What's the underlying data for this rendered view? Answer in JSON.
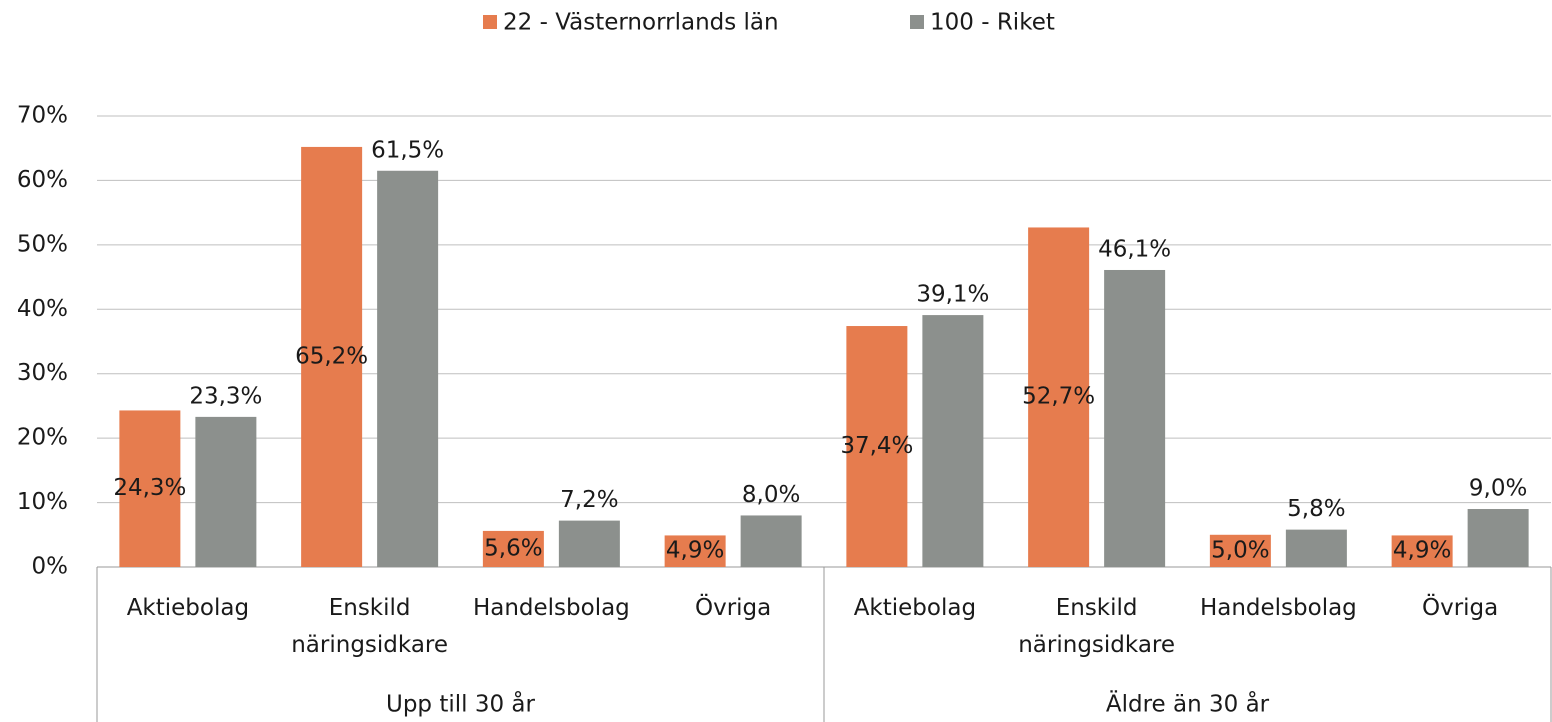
{
  "chart_data": {
    "type": "bar",
    "groups": [
      {
        "name": "Upp till 30 år",
        "categories": [
          "Aktiebolag",
          "Enskild näringsidkare",
          "Handelsbolag",
          "Övriga"
        ]
      },
      {
        "name": "Äldre än 30 år",
        "categories": [
          "Aktiebolag",
          "Enskild näringsidkare",
          "Handelsbolag",
          "Övriga"
        ]
      }
    ],
    "series": [
      {
        "name": "22 - Västernorrlands län",
        "color": "#e67c4e",
        "values": [
          24.3,
          65.2,
          5.6,
          4.9,
          37.4,
          52.7,
          5.0,
          4.9
        ],
        "value_labels": [
          "24,3%",
          "65,2%",
          "5,6%",
          "4,9%",
          "37,4%",
          "52,7%",
          "5,0%",
          "4,9%"
        ]
      },
      {
        "name": "100 - Riket",
        "color": "#8c908d",
        "values": [
          23.3,
          61.5,
          7.2,
          8.0,
          39.1,
          46.1,
          5.8,
          9.0
        ],
        "value_labels": [
          "23,3%",
          "61,5%",
          "7,2%",
          "8,0%",
          "39,1%",
          "46,1%",
          "5,8%",
          "9,0%"
        ]
      }
    ],
    "ylim": [
      0,
      70
    ],
    "yticks": [
      {
        "value": 0,
        "label": "0%"
      },
      {
        "value": 10,
        "label": "10%"
      },
      {
        "value": 20,
        "label": "20%"
      },
      {
        "value": 30,
        "label": "30%"
      },
      {
        "value": 40,
        "label": "40%"
      },
      {
        "value": 50,
        "label": "50%"
      },
      {
        "value": 60,
        "label": "60%"
      },
      {
        "value": 70,
        "label": "70%"
      }
    ],
    "grid": true,
    "legend": "top"
  }
}
